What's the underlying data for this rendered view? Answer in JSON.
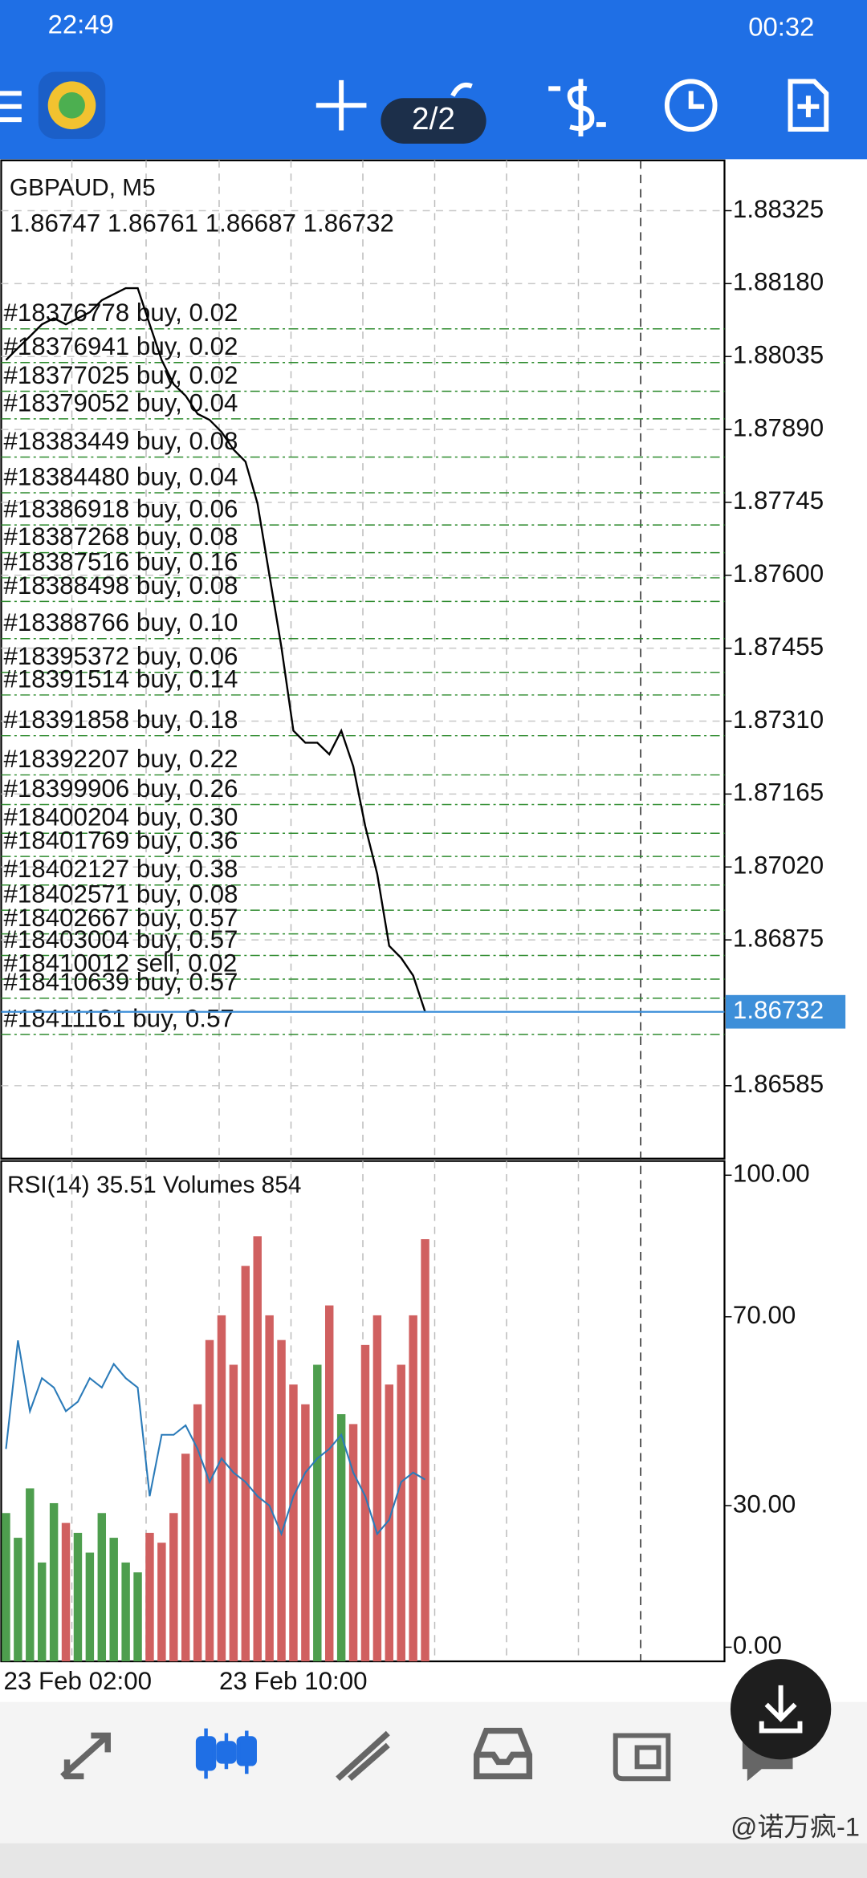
{
  "status_bar": {
    "time": "22:49",
    "clock": "00:32"
  },
  "toolbar": {
    "page_indicator": "2/2"
  },
  "chart_data": [
    {
      "type": "price",
      "title": "GBPAUD, M5",
      "subtitle": "1.86747 1.86761 1.86687 1.86732",
      "values": [
        1.88028,
        1.88052,
        1.88075,
        1.88099,
        1.88111,
        1.88099,
        1.88111,
        1.88123,
        1.88147,
        1.88159,
        1.88171,
        1.88171,
        1.88099,
        1.88028,
        1.8798,
        1.87957,
        1.87921,
        1.87909,
        1.87885,
        1.8785,
        1.87826,
        1.87743,
        1.876,
        1.87457,
        1.87291,
        1.87267,
        1.87267,
        1.87244,
        1.87291,
        1.8722,
        1.87101,
        1.87006,
        1.86863,
        1.86839,
        1.86804,
        1.86732
      ],
      "color": "#000000",
      "ylim": [
        1.8644,
        1.88425
      ],
      "yticks": [
        1.88325,
        {
          "value": 1.8818,
          "label": "1.88180"
        },
        1.88035,
        {
          "value": 1.8789,
          "label": "1.87890"
        },
        1.87745,
        {
          "value": 1.876,
          "label": "1.87600"
        },
        1.87455,
        {
          "value": 1.8731,
          "label": "1.87310"
        },
        1.87165,
        {
          "value": 1.8702,
          "label": "1.87020"
        },
        1.86875,
        1.86585
      ],
      "grid": true,
      "current_price": 1.86732,
      "current_price_color": "#3d8fd9",
      "order_color": "#2e8b2e",
      "orders": [
        {
          "label": "#18376778 buy, 0.02",
          "price": 1.8809
        },
        {
          "label": "#18376941 buy, 0.02",
          "price": 1.88023
        },
        {
          "label": "#18377025 buy, 0.02",
          "price": 1.87966
        },
        {
          "label": "#18379052 buy, 0.04",
          "price": 1.87911
        },
        {
          "label": "#18383449 buy, 0.08",
          "price": 1.87835
        },
        {
          "label": "#18384480 buy, 0.04",
          "price": 1.87764
        },
        {
          "label": "#18386918 buy, 0.06",
          "price": 1.877
        },
        {
          "label": "#18387268 buy, 0.08",
          "price": 1.87645
        },
        {
          "label": "#18387516 buy, 0.16",
          "price": 1.87595
        },
        {
          "label": "#18388498 buy, 0.08",
          "price": 1.87548
        },
        {
          "label": "#18388766 buy, 0.10",
          "price": 1.87474
        },
        {
          "label": "#18395372 buy, 0.06",
          "price": 1.87407
        },
        {
          "label": "#18391514 buy, 0.14",
          "price": 1.87362
        },
        {
          "label": "#18391858 buy, 0.18",
          "price": 1.87281
        },
        {
          "label": "#18392207 buy, 0.22",
          "price": 1.87203
        },
        {
          "label": "#18399906 buy, 0.26",
          "price": 1.87144
        },
        {
          "label": "#18400204 buy, 0.30",
          "price": 1.87087
        },
        {
          "label": "#18401769 buy, 0.36",
          "price": 1.87041
        },
        {
          "label": "#18402127 buy, 0.38",
          "price": 1.86984
        },
        {
          "label": "#18402571 buy, 0.08",
          "price": 1.86934
        },
        {
          "label": "#18402667 buy, 0.57",
          "price": 1.86887
        },
        {
          "label": "#18403004 buy, 0.57",
          "price": 1.86844
        },
        {
          "label": "#18410012 sell, 0.02",
          "price": 1.86797
        },
        {
          "label": "#18410639 buy, 0.57",
          "price": 1.86759
        },
        {
          "label": "#18411161 buy, 0.57",
          "price": 1.86687
        }
      ],
      "time_labels": [
        "23 Feb 02:00",
        "23 Feb 10:00"
      ]
    },
    {
      "type": "indicator",
      "title": "RSI(14) 35.51 Volumes 854",
      "ylim": [
        -3,
        103
      ],
      "yticks": [
        {
          "value": 100,
          "label": "100.00"
        },
        {
          "value": 70,
          "label": "70.00"
        },
        {
          "value": 30,
          "label": "30.00"
        },
        {
          "value": 0,
          "label": "0.00"
        }
      ],
      "rsi": [
        42,
        65,
        50,
        57,
        55,
        50,
        52,
        57,
        55,
        60,
        57,
        55,
        32,
        45,
        45,
        47,
        42,
        35,
        40,
        37,
        35,
        32,
        30,
        24,
        32,
        37,
        40,
        42,
        45,
        37,
        32,
        24,
        27,
        35,
        37,
        35.51
      ],
      "rsi_color": "#2b7bb9",
      "volumes": [
        300,
        250,
        350,
        200,
        320,
        280,
        260,
        220,
        300,
        250,
        200,
        180,
        260,
        240,
        300,
        420,
        520,
        650,
        700,
        600,
        800,
        860,
        700,
        650,
        560,
        520,
        600,
        720,
        500,
        480,
        640,
        700,
        560,
        600,
        700,
        854
      ],
      "up_color": "#4e9e4e",
      "down_color": "#d06060"
    }
  ],
  "watermark": "@诺万疯-1"
}
